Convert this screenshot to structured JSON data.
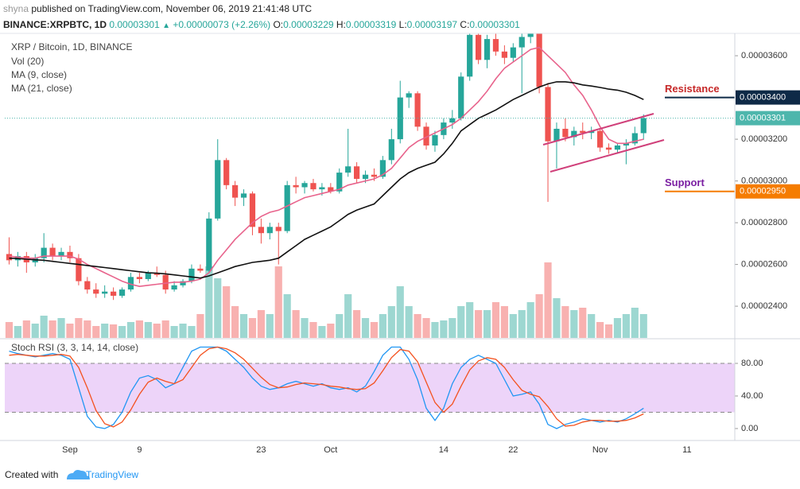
{
  "header": {
    "author": "shyna",
    "published": "published on TradingView.com, November 06, 2019 21:41:48 UTC",
    "symbol": "BINANCE:XRPBTC, 1D",
    "arrow": "▲",
    "change": "+0.00000073 (+2.26%)",
    "ohlc_labels": [
      "O:",
      "H:",
      "L:",
      "C:"
    ]
  },
  "footer": {
    "prefix": "Created with",
    "brand": "TradingView"
  },
  "chart_data": {
    "type": "candlestick",
    "title": "XRP / Bitcoin, 1D, BINANCE",
    "categories": [
      null,
      null,
      null,
      null,
      null,
      null,
      null,
      "Sep",
      null,
      null,
      null,
      null,
      null,
      null,
      null,
      "9",
      null,
      null,
      null,
      null,
      null,
      null,
      null,
      null,
      null,
      null,
      null,
      null,
      null,
      "23",
      null,
      null,
      null,
      null,
      null,
      null,
      null,
      "Oct",
      null,
      null,
      null,
      null,
      null,
      null,
      null,
      null,
      null,
      null,
      null,
      null,
      "14",
      null,
      null,
      null,
      null,
      null,
      null,
      null,
      "22",
      null,
      null,
      null,
      null,
      null,
      null,
      null,
      null,
      null,
      "Nov",
      null,
      null,
      null,
      null,
      null,
      null,
      null,
      null,
      null,
      "11",
      null,
      null,
      null,
      null,
      null
    ],
    "open": [
      2.65e-05,
      2.62e-05,
      2.64e-05,
      2.61e-05,
      2.63e-05,
      2.68e-05,
      2.64e-05,
      2.66e-05,
      2.63e-05,
      2.52e-05,
      2.48e-05,
      2.46e-05,
      2.47e-05,
      2.45e-05,
      2.48e-05,
      2.54e-05,
      2.53e-05,
      2.56e-05,
      2.55e-05,
      2.48e-05,
      2.5e-05,
      2.52e-05,
      2.58e-05,
      2.57e-05,
      2.82e-05,
      3.1e-05,
      2.98e-05,
      2.92e-05,
      2.94e-05,
      2.78e-05,
      2.75e-05,
      2.78e-05,
      2.76e-05,
      2.98e-05,
      2.97e-05,
      2.99e-05,
      2.96e-05,
      2.97e-05,
      2.95e-05,
      3.04e-05,
      3.07e-05,
      3.01e-05,
      3.03e-05,
      3.02e-05,
      3.1e-05,
      3.2e-05,
      3.4e-05,
      3.42e-05,
      3.26e-05,
      3.17e-05,
      3.22e-05,
      3.28e-05,
      3.3e-05,
      3.5e-05,
      3.7e-05,
      3.58e-05,
      3.68e-05,
      3.62e-05,
      3.59e-05,
      3.64e-05,
      3.69e-05,
      3.73e-05,
      3.45e-05,
      3.19e-05,
      3.25e-05,
      3.21e-05,
      3.24e-05,
      3.23e-05,
      3.24e-05,
      3.16e-05,
      3.15e-05,
      3.17e-05,
      3.18e-05,
      3.229e-05,
      null,
      null,
      null,
      null,
      null,
      null,
      null,
      null,
      null,
      null
    ],
    "high": [
      2.73e-05,
      2.66e-05,
      2.66e-05,
      2.65e-05,
      2.75e-05,
      2.7e-05,
      2.68e-05,
      2.69e-05,
      2.65e-05,
      2.54e-05,
      2.51e-05,
      2.5e-05,
      2.49e-05,
      2.49e-05,
      2.56e-05,
      2.56e-05,
      2.57e-05,
      2.59e-05,
      2.57e-05,
      2.52e-05,
      2.53e-05,
      2.6e-05,
      2.6e-05,
      2.85e-05,
      3.2e-05,
      3.11e-05,
      3e-05,
      2.96e-05,
      2.95e-05,
      2.82e-05,
      2.8e-05,
      2.8e-05,
      3e-05,
      3.02e-05,
      3e-05,
      3.01e-05,
      2.99e-05,
      2.99e-05,
      3.06e-05,
      3.25e-05,
      3.09e-05,
      3.05e-05,
      3.06e-05,
      3.12e-05,
      3.25e-05,
      3.48e-05,
      3.43e-05,
      3.43e-05,
      3.28e-05,
      3.24e-05,
      3.3e-05,
      3.34e-05,
      3.52e-05,
      3.76e-05,
      3.78e-05,
      3.7e-05,
      3.72e-05,
      3.65e-05,
      3.66e-05,
      3.72e-05,
      3.76e-05,
      3.76e-05,
      3.47e-05,
      3.28e-05,
      3.3e-05,
      3.26e-05,
      3.28e-05,
      3.26e-05,
      3.25e-05,
      3.18e-05,
      3.18e-05,
      3.2e-05,
      3.26e-05,
      3.319e-05,
      null,
      null,
      null,
      null,
      null,
      null,
      null,
      null,
      null,
      null
    ],
    "low": [
      2.6e-05,
      2.59e-05,
      2.56e-05,
      2.59e-05,
      2.61e-05,
      2.62e-05,
      2.62e-05,
      2.61e-05,
      2.5e-05,
      2.46e-05,
      2.44e-05,
      2.44e-05,
      2.43e-05,
      2.44e-05,
      2.47e-05,
      2.51e-05,
      2.52e-05,
      2.54e-05,
      2.46e-05,
      2.47e-05,
      2.49e-05,
      2.51e-05,
      2.56e-05,
      2.56e-05,
      2.81e-05,
      2.96e-05,
      2.88e-05,
      2.88e-05,
      2.74e-05,
      2.7e-05,
      2.72e-05,
      2.6e-05,
      2.75e-05,
      2.94e-05,
      2.94e-05,
      2.95e-05,
      2.93e-05,
      2.94e-05,
      2.94e-05,
      3.02e-05,
      2.99e-05,
      2.99e-05,
      3e-05,
      3.01e-05,
      3.08e-05,
      3.18e-05,
      3.35e-05,
      3.24e-05,
      3.15e-05,
      3.14e-05,
      3.2e-05,
      3.25e-05,
      3.29e-05,
      3.48e-05,
      3.56e-05,
      3.54e-05,
      3.6e-05,
      3.56e-05,
      3.57e-05,
      3.42e-05,
      3.66e-05,
      3.42e-05,
      2.9e-05,
      3.06e-05,
      3.19e-05,
      3.17e-05,
      3.2e-05,
      3.2e-05,
      3.14e-05,
      3.13e-05,
      3.13e-05,
      3.08e-05,
      3.17e-05,
      3.197e-05,
      null,
      null,
      null,
      null,
      null,
      null,
      null,
      null,
      null,
      null
    ],
    "close": [
      2.62e-05,
      2.64e-05,
      2.61e-05,
      2.63e-05,
      2.68e-05,
      2.64e-05,
      2.66e-05,
      2.63e-05,
      2.52e-05,
      2.48e-05,
      2.46e-05,
      2.47e-05,
      2.45e-05,
      2.48e-05,
      2.54e-05,
      2.53e-05,
      2.56e-05,
      2.55e-05,
      2.48e-05,
      2.5e-05,
      2.52e-05,
      2.58e-05,
      2.57e-05,
      2.82e-05,
      3.1e-05,
      2.98e-05,
      2.92e-05,
      2.94e-05,
      2.78e-05,
      2.75e-05,
      2.78e-05,
      2.76e-05,
      2.98e-05,
      2.97e-05,
      2.99e-05,
      2.96e-05,
      2.97e-05,
      2.95e-05,
      3.04e-05,
      3.07e-05,
      3.01e-05,
      3.03e-05,
      3.02e-05,
      3.1e-05,
      3.2e-05,
      3.4e-05,
      3.42e-05,
      3.26e-05,
      3.17e-05,
      3.22e-05,
      3.28e-05,
      3.3e-05,
      3.5e-05,
      3.7e-05,
      3.58e-05,
      3.68e-05,
      3.62e-05,
      3.59e-05,
      3.64e-05,
      3.69e-05,
      3.73e-05,
      3.45e-05,
      3.19e-05,
      3.25e-05,
      3.21e-05,
      3.24e-05,
      3.23e-05,
      3.24e-05,
      3.16e-05,
      3.15e-05,
      3.17e-05,
      3.18e-05,
      3.229e-05,
      3.301e-05,
      null,
      null,
      null,
      null,
      null,
      null,
      null,
      null,
      null,
      null
    ],
    "up_color": "#26a69a",
    "down_color": "#ef5350",
    "volume": {
      "name": "Vol (20)",
      "values": [
        20,
        15,
        22,
        18,
        28,
        22,
        25,
        18,
        25,
        22,
        15,
        18,
        17,
        15,
        20,
        22,
        20,
        18,
        22,
        15,
        18,
        15,
        30,
        90,
        75,
        65,
        40,
        30,
        25,
        35,
        30,
        90,
        55,
        35,
        25,
        20,
        15,
        18,
        30,
        55,
        35,
        25,
        20,
        30,
        40,
        65,
        40,
        30,
        25,
        20,
        22,
        25,
        40,
        45,
        35,
        35,
        45,
        40,
        30,
        35,
        45,
        55,
        95,
        50,
        40,
        35,
        38,
        30,
        20,
        17,
        25,
        30,
        38,
        30,
        null,
        null,
        null,
        null,
        null,
        null,
        null,
        null,
        null,
        null
      ]
    },
    "series": [
      {
        "name": "MA (9, close)",
        "color": "#e8638c",
        "values": [
          2.64e-05,
          2.635e-05,
          2.63e-05,
          2.63e-05,
          2.64e-05,
          2.64e-05,
          2.64e-05,
          2.64e-05,
          2.625e-05,
          2.6e-05,
          2.58e-05,
          2.56e-05,
          2.54e-05,
          2.52e-05,
          2.505e-05,
          2.495e-05,
          2.5e-05,
          2.505e-05,
          2.51e-05,
          2.515e-05,
          2.515e-05,
          2.52e-05,
          2.53e-05,
          2.56e-05,
          2.62e-05,
          2.67e-05,
          2.72e-05,
          2.76e-05,
          2.8e-05,
          2.83e-05,
          2.85e-05,
          2.86e-05,
          2.88e-05,
          2.9e-05,
          2.92e-05,
          2.93e-05,
          2.94e-05,
          2.95e-05,
          2.96e-05,
          2.98e-05,
          2.99e-05,
          3e-05,
          3.01e-05,
          3.03e-05,
          3.06e-05,
          3.11e-05,
          3.16e-05,
          3.19e-05,
          3.21e-05,
          3.23e-05,
          3.25e-05,
          3.27e-05,
          3.3e-05,
          3.34e-05,
          3.38e-05,
          3.43e-05,
          3.49e-05,
          3.54e-05,
          3.57e-05,
          3.6e-05,
          3.63e-05,
          3.64e-05,
          3.6e-05,
          3.56e-05,
          3.52e-05,
          3.46e-05,
          3.41e-05,
          3.34e-05,
          3.26e-05,
          3.2e-05,
          3.18e-05,
          3.18e-05,
          3.19e-05,
          3.2e-05,
          null,
          null,
          null,
          null,
          null,
          null,
          null,
          null,
          null,
          null
        ]
      },
      {
        "name": "MA (21, close)",
        "color": "#111111",
        "values": [
          2.63e-05,
          2.628e-05,
          2.625e-05,
          2.622e-05,
          2.62e-05,
          2.615e-05,
          2.61e-05,
          2.605e-05,
          2.6e-05,
          2.595e-05,
          2.59e-05,
          2.585e-05,
          2.58e-05,
          2.575e-05,
          2.57e-05,
          2.565e-05,
          2.56e-05,
          2.558e-05,
          2.555e-05,
          2.55e-05,
          2.545e-05,
          2.54e-05,
          2.535e-05,
          2.545e-05,
          2.56e-05,
          2.575e-05,
          2.59e-05,
          2.6e-05,
          2.61e-05,
          2.615e-05,
          2.62e-05,
          2.63e-05,
          2.66e-05,
          2.69e-05,
          2.72e-05,
          2.74e-05,
          2.76e-05,
          2.78e-05,
          2.81e-05,
          2.84e-05,
          2.86e-05,
          2.875e-05,
          2.89e-05,
          2.93e-05,
          2.97e-05,
          3.01e-05,
          3.04e-05,
          3.06e-05,
          3.075e-05,
          3.09e-05,
          3.13e-05,
          3.18e-05,
          3.24e-05,
          3.27e-05,
          3.3e-05,
          3.32e-05,
          3.34e-05,
          3.365e-05,
          3.39e-05,
          3.41e-05,
          3.43e-05,
          3.45e-05,
          3.465e-05,
          3.475e-05,
          3.475e-05,
          3.47e-05,
          3.46e-05,
          3.455e-05,
          3.448e-05,
          3.44e-05,
          3.435e-05,
          3.425e-05,
          3.41e-05,
          3.39e-05,
          null,
          null,
          null,
          null,
          null,
          null,
          null,
          null,
          null,
          null
        ]
      }
    ],
    "ylim": [
      2.248e-05,
      3.707e-05
    ],
    "yticks": [
      {
        "value": 2.4e-05,
        "label": "0.00002400"
      },
      {
        "value": 2.6e-05,
        "label": "0.00002600"
      },
      {
        "value": 2.8e-05,
        "label": "0.00002800"
      },
      {
        "value": 3e-05,
        "label": "0.00003000"
      },
      {
        "value": 3.2e-05,
        "label": "0.00003200"
      },
      {
        "value": 3.6e-05,
        "label": "0.00003600"
      }
    ],
    "grid": false,
    "last_color": "#4db6ac",
    "levels": [
      {
        "name": "Resistance",
        "value": 3.4e-05,
        "label": "0.00003400",
        "color": "#0e2a47",
        "text_color": "#c62828"
      },
      {
        "name": "Support",
        "value": 2.95e-05,
        "label": "0.00002950",
        "color": "#f57c00",
        "text_color": "#7b1fa2"
      }
    ],
    "indicator": {
      "name": "Stoch RSI (3, 3, 14, 14, close)",
      "ylim": [
        -13.7,
        109.3
      ],
      "yticks": [
        {
          "value": 0,
          "label": "0.00"
        },
        {
          "value": 40,
          "label": "40.00"
        },
        {
          "value": 80,
          "label": "80.00"
        }
      ],
      "band": [
        20,
        80
      ],
      "band_color": "#e8c9f7",
      "series": [
        {
          "name": "K",
          "color": "#2196f3",
          "values": [
            95,
            92,
            90,
            88,
            90,
            92,
            90,
            85,
            50,
            15,
            2,
            0,
            5,
            20,
            45,
            62,
            65,
            60,
            50,
            55,
            75,
            95,
            100,
            100,
            100,
            95,
            85,
            75,
            62,
            52,
            48,
            50,
            55,
            58,
            55,
            52,
            55,
            50,
            48,
            50,
            45,
            52,
            70,
            90,
            100,
            100,
            85,
            60,
            25,
            10,
            25,
            55,
            75,
            85,
            90,
            85,
            80,
            60,
            40,
            42,
            45,
            30,
            5,
            0,
            5,
            8,
            12,
            10,
            8,
            10,
            8,
            12,
            18,
            25,
            null,
            null,
            null,
            null,
            null,
            null,
            null,
            null,
            null,
            null
          ]
        },
        {
          "name": "D",
          "color": "#f4511e",
          "values": [
            90,
            91,
            90,
            89,
            89,
            90,
            91,
            89,
            75,
            50,
            22,
            6,
            2,
            8,
            23,
            42,
            57,
            62,
            58,
            55,
            60,
            75,
            90,
            98,
            100,
            98,
            93,
            85,
            74,
            63,
            54,
            50,
            51,
            54,
            56,
            55,
            54,
            52,
            51,
            49,
            48,
            49,
            56,
            71,
            87,
            97,
            95,
            82,
            57,
            32,
            20,
            30,
            52,
            72,
            83,
            87,
            85,
            75,
            60,
            47,
            42,
            39,
            27,
            12,
            3,
            4,
            8,
            10,
            10,
            9,
            9,
            10,
            13,
            18,
            null,
            null,
            null,
            null,
            null,
            null,
            null,
            null,
            null,
            null
          ]
        }
      ]
    }
  }
}
